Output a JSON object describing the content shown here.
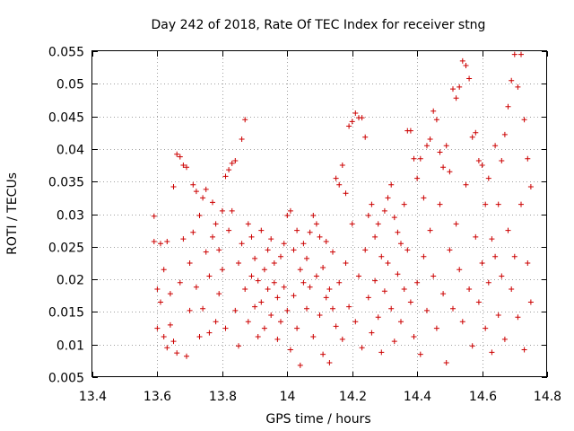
{
  "chart_data": {
    "type": "scatter",
    "title": "Day 242 of 2018, Rate Of TEC Index for receiver stng",
    "xlabel": "GPS time / hours",
    "ylabel": "ROTI / TECUs",
    "xlim": [
      13.4,
      14.8
    ],
    "ylim": [
      0.005,
      0.055
    ],
    "xticks": [
      13.4,
      13.6,
      13.8,
      14.0,
      14.2,
      14.4,
      14.6,
      14.8
    ],
    "xtick_labels": [
      "13.4",
      "13.6",
      "13.8",
      "14",
      "14.2",
      "14.4",
      "14.6",
      "14.8"
    ],
    "yticks": [
      0.005,
      0.01,
      0.015,
      0.02,
      0.025,
      0.03,
      0.035,
      0.04,
      0.045,
      0.05,
      0.055
    ],
    "ytick_labels": [
      "0.005",
      "0.01",
      "0.015",
      "0.02",
      "0.025",
      "0.03",
      "0.035",
      "0.04",
      "0.045",
      "0.05",
      "0.055"
    ],
    "grid": true,
    "marker": "plus",
    "color": "#cc0000",
    "x_range_of_points": [
      13.59,
      14.75
    ],
    "series": [
      {
        "name": "ROTI",
        "points": [
          [
            13.59,
            0.0297
          ],
          [
            13.59,
            0.0258
          ],
          [
            13.6,
            0.0185
          ],
          [
            13.6,
            0.0125
          ],
          [
            13.61,
            0.0165
          ],
          [
            13.61,
            0.0255
          ],
          [
            13.62,
            0.0112
          ],
          [
            13.62,
            0.0215
          ],
          [
            13.63,
            0.0258
          ],
          [
            13.63,
            0.0095
          ],
          [
            13.64,
            0.0178
          ],
          [
            13.64,
            0.013
          ],
          [
            13.65,
            0.0342
          ],
          [
            13.65,
            0.0105
          ],
          [
            13.66,
            0.0392
          ],
          [
            13.66,
            0.0087
          ],
          [
            13.67,
            0.0388
          ],
          [
            13.67,
            0.0195
          ],
          [
            13.68,
            0.0375
          ],
          [
            13.68,
            0.0262
          ],
          [
            13.69,
            0.0372
          ],
          [
            13.69,
            0.0082
          ],
          [
            13.7,
            0.0225
          ],
          [
            13.7,
            0.0152
          ],
          [
            13.71,
            0.0345
          ],
          [
            13.71,
            0.0272
          ],
          [
            13.72,
            0.0335
          ],
          [
            13.72,
            0.0188
          ],
          [
            13.73,
            0.0112
          ],
          [
            13.73,
            0.0298
          ],
          [
            13.74,
            0.0325
          ],
          [
            13.74,
            0.0155
          ],
          [
            13.75,
            0.0338
          ],
          [
            13.75,
            0.0242
          ],
          [
            13.76,
            0.0205
          ],
          [
            13.76,
            0.0118
          ],
          [
            13.77,
            0.0318
          ],
          [
            13.77,
            0.0265
          ],
          [
            13.78,
            0.0285
          ],
          [
            13.78,
            0.0135
          ],
          [
            13.79,
            0.0245
          ],
          [
            13.79,
            0.0178
          ],
          [
            13.8,
            0.0305
          ],
          [
            13.8,
            0.0215
          ],
          [
            13.81,
            0.0358
          ],
          [
            13.81,
            0.0125
          ],
          [
            13.82,
            0.0368
          ],
          [
            13.82,
            0.0275
          ],
          [
            13.83,
            0.0378
          ],
          [
            13.83,
            0.0305
          ],
          [
            13.84,
            0.0382
          ],
          [
            13.84,
            0.0152
          ],
          [
            13.85,
            0.0225
          ],
          [
            13.85,
            0.0098
          ],
          [
            13.86,
            0.0415
          ],
          [
            13.86,
            0.0255
          ],
          [
            13.87,
            0.0445
          ],
          [
            13.87,
            0.0185
          ],
          [
            13.88,
            0.0285
          ],
          [
            13.88,
            0.0135
          ],
          [
            13.89,
            0.0205
          ],
          [
            13.89,
            0.0265
          ],
          [
            13.9,
            0.0158
          ],
          [
            13.9,
            0.0232
          ],
          [
            13.91,
            0.0112
          ],
          [
            13.91,
            0.0198
          ],
          [
            13.92,
            0.0275
          ],
          [
            13.92,
            0.0165
          ],
          [
            13.93,
            0.0215
          ],
          [
            13.93,
            0.0125
          ],
          [
            13.94,
            0.0245
          ],
          [
            13.94,
            0.0185
          ],
          [
            13.95,
            0.0262
          ],
          [
            13.95,
            0.0145
          ],
          [
            13.96,
            0.0195
          ],
          [
            13.96,
            0.0225
          ],
          [
            13.97,
            0.0108
          ],
          [
            13.97,
            0.0172
          ],
          [
            13.98,
            0.0235
          ],
          [
            13.98,
            0.0135
          ],
          [
            13.99,
            0.0255
          ],
          [
            13.99,
            0.0188
          ],
          [
            14.0,
            0.0298
          ],
          [
            14.0,
            0.0152
          ],
          [
            14.01,
            0.0305
          ],
          [
            14.01,
            0.0092
          ],
          [
            14.02,
            0.0245
          ],
          [
            14.02,
            0.0175
          ],
          [
            14.03,
            0.0275
          ],
          [
            14.03,
            0.0125
          ],
          [
            14.04,
            0.0215
          ],
          [
            14.04,
            0.0068
          ],
          [
            14.05,
            0.0195
          ],
          [
            14.05,
            0.0255
          ],
          [
            14.06,
            0.0232
          ],
          [
            14.06,
            0.0155
          ],
          [
            14.07,
            0.0272
          ],
          [
            14.07,
            0.0188
          ],
          [
            14.08,
            0.0298
          ],
          [
            14.08,
            0.0112
          ],
          [
            14.09,
            0.0285
          ],
          [
            14.09,
            0.0205
          ],
          [
            14.1,
            0.0265
          ],
          [
            14.1,
            0.0145
          ],
          [
            14.11,
            0.0218
          ],
          [
            14.11,
            0.0085
          ],
          [
            14.12,
            0.0258
          ],
          [
            14.12,
            0.0172
          ],
          [
            14.13,
            0.0185
          ],
          [
            14.13,
            0.0072
          ],
          [
            14.14,
            0.0155
          ],
          [
            14.14,
            0.0242
          ],
          [
            14.15,
            0.0355
          ],
          [
            14.15,
            0.0128
          ],
          [
            14.16,
            0.0345
          ],
          [
            14.16,
            0.0195
          ],
          [
            14.17,
            0.0375
          ],
          [
            14.17,
            0.0108
          ],
          [
            14.18,
            0.0332
          ],
          [
            14.18,
            0.0225
          ],
          [
            14.19,
            0.0435
          ],
          [
            14.19,
            0.0158
          ],
          [
            14.2,
            0.0442
          ],
          [
            14.2,
            0.0285
          ],
          [
            14.21,
            0.0455
          ],
          [
            14.21,
            0.0135
          ],
          [
            14.22,
            0.0448
          ],
          [
            14.22,
            0.0205
          ],
          [
            14.23,
            0.0448
          ],
          [
            14.23,
            0.0095
          ],
          [
            14.24,
            0.0418
          ],
          [
            14.24,
            0.0245
          ],
          [
            14.25,
            0.0298
          ],
          [
            14.25,
            0.0172
          ],
          [
            14.26,
            0.0315
          ],
          [
            14.26,
            0.0118
          ],
          [
            14.27,
            0.0265
          ],
          [
            14.27,
            0.0198
          ],
          [
            14.28,
            0.0285
          ],
          [
            14.28,
            0.0142
          ],
          [
            14.29,
            0.0235
          ],
          [
            14.29,
            0.0088
          ],
          [
            14.3,
            0.0305
          ],
          [
            14.3,
            0.0182
          ],
          [
            14.31,
            0.0325
          ],
          [
            14.31,
            0.0225
          ],
          [
            14.32,
            0.0345
          ],
          [
            14.32,
            0.0155
          ],
          [
            14.33,
            0.0295
          ],
          [
            14.33,
            0.0105
          ],
          [
            14.34,
            0.0272
          ],
          [
            14.34,
            0.0208
          ],
          [
            14.35,
            0.0255
          ],
          [
            14.35,
            0.0135
          ],
          [
            14.36,
            0.0315
          ],
          [
            14.36,
            0.0185
          ],
          [
            14.37,
            0.0428
          ],
          [
            14.37,
            0.0245
          ],
          [
            14.38,
            0.0428
          ],
          [
            14.38,
            0.0165
          ],
          [
            14.39,
            0.0385
          ],
          [
            14.39,
            0.0112
          ],
          [
            14.4,
            0.0355
          ],
          [
            14.4,
            0.0195
          ],
          [
            14.41,
            0.0385
          ],
          [
            14.41,
            0.0085
          ],
          [
            14.42,
            0.0325
          ],
          [
            14.42,
            0.0235
          ],
          [
            14.43,
            0.0405
          ],
          [
            14.43,
            0.0152
          ],
          [
            14.44,
            0.0415
          ],
          [
            14.44,
            0.0275
          ],
          [
            14.45,
            0.0458
          ],
          [
            14.45,
            0.0205
          ],
          [
            14.46,
            0.0445
          ],
          [
            14.46,
            0.0125
          ],
          [
            14.47,
            0.0395
          ],
          [
            14.47,
            0.0315
          ],
          [
            14.48,
            0.0372
          ],
          [
            14.48,
            0.0178
          ],
          [
            14.49,
            0.0405
          ],
          [
            14.49,
            0.0072
          ],
          [
            14.5,
            0.0365
          ],
          [
            14.5,
            0.0245
          ],
          [
            14.51,
            0.0492
          ],
          [
            14.51,
            0.0155
          ],
          [
            14.52,
            0.0478
          ],
          [
            14.52,
            0.0285
          ],
          [
            14.53,
            0.0495
          ],
          [
            14.53,
            0.0215
          ],
          [
            14.54,
            0.0535
          ],
          [
            14.54,
            0.0135
          ],
          [
            14.55,
            0.0528
          ],
          [
            14.55,
            0.0345
          ],
          [
            14.56,
            0.0508
          ],
          [
            14.56,
            0.0185
          ],
          [
            14.57,
            0.0418
          ],
          [
            14.57,
            0.0098
          ],
          [
            14.58,
            0.0425
          ],
          [
            14.58,
            0.0265
          ],
          [
            14.59,
            0.0382
          ],
          [
            14.59,
            0.0165
          ],
          [
            14.6,
            0.0375
          ],
          [
            14.6,
            0.0225
          ],
          [
            14.61,
            0.0315
          ],
          [
            14.61,
            0.0125
          ],
          [
            14.62,
            0.0355
          ],
          [
            14.62,
            0.0195
          ],
          [
            14.63,
            0.0262
          ],
          [
            14.63,
            0.0088
          ],
          [
            14.64,
            0.0405
          ],
          [
            14.64,
            0.0235
          ],
          [
            14.65,
            0.0315
          ],
          [
            14.65,
            0.0145
          ],
          [
            14.66,
            0.0382
          ],
          [
            14.66,
            0.0205
          ],
          [
            14.67,
            0.0422
          ],
          [
            14.67,
            0.0108
          ],
          [
            14.68,
            0.0465
          ],
          [
            14.68,
            0.0275
          ],
          [
            14.69,
            0.0505
          ],
          [
            14.69,
            0.0185
          ],
          [
            14.7,
            0.0545
          ],
          [
            14.7,
            0.0235
          ],
          [
            14.71,
            0.0495
          ],
          [
            14.71,
            0.0142
          ],
          [
            14.72,
            0.0545
          ],
          [
            14.72,
            0.0315
          ],
          [
            14.73,
            0.0445
          ],
          [
            14.73,
            0.0092
          ],
          [
            14.74,
            0.0385
          ],
          [
            14.74,
            0.0225
          ],
          [
            14.75,
            0.0342
          ],
          [
            14.75,
            0.0165
          ]
        ]
      }
    ]
  }
}
